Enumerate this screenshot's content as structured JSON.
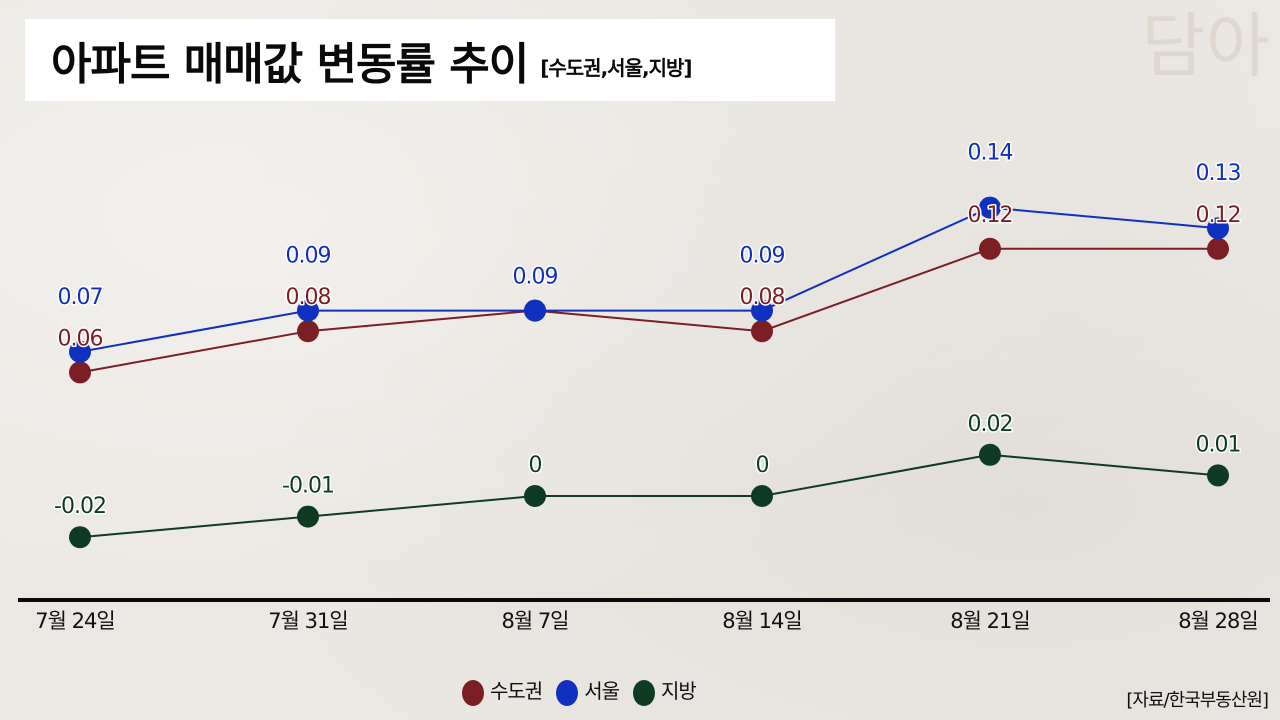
{
  "title": {
    "main": "아파트 매매값 변동률 추이",
    "sub": "[수도권,서울,지방]"
  },
  "watermark": "담아",
  "source": "[자료/한국부동산원]",
  "legend": [
    {
      "name": "수도권",
      "color": "#7b1f24"
    },
    {
      "name": "서울",
      "color": "#1030c0"
    },
    {
      "name": "지방",
      "color": "#0e3b22"
    }
  ],
  "chart_data": {
    "type": "line",
    "title": "아파트 매매값 변동률 추이 [수도권,서울,지방]",
    "xlabel": "",
    "ylabel": "",
    "categories": [
      "7월 24일",
      "7월 31일",
      "8월 7일",
      "8월 14일",
      "8월 21일",
      "8월 28일"
    ],
    "series": [
      {
        "name": "수도권",
        "color": "#7b1f24",
        "values": [
          0.06,
          0.08,
          0.09,
          0.08,
          0.12,
          0.12
        ]
      },
      {
        "name": "서울",
        "color": "#1030c0",
        "values": [
          0.07,
          0.09,
          0.09,
          0.09,
          0.14,
          0.13
        ]
      },
      {
        "name": "지방",
        "color": "#0e3b22",
        "values": [
          -0.02,
          -0.01,
          0,
          0,
          0.02,
          0.01
        ]
      }
    ],
    "grid": false,
    "legend_position": "bottom",
    "data_labels": true
  }
}
